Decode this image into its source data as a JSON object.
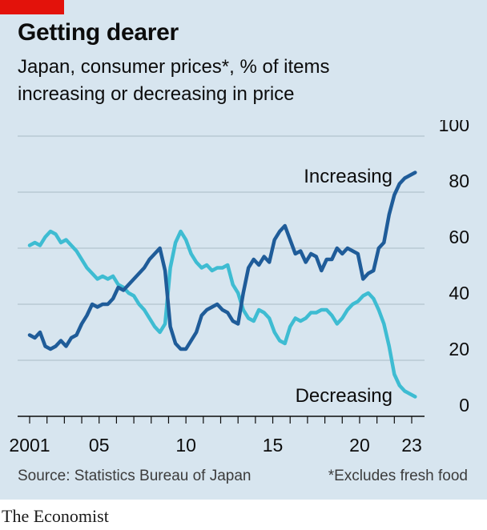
{
  "header": {
    "title": "Getting dearer",
    "subtitle_line1": "Japan, consumer prices*, % of items",
    "subtitle_line2": "increasing or decreasing in price"
  },
  "footer": {
    "source": "Source: Statistics Bureau of Japan",
    "note": "*Excludes fresh food",
    "brand": "The Economist"
  },
  "colors": {
    "increasing": "#1f5c99",
    "decreasing": "#3ebcd2",
    "background": "#d7e5ef",
    "accent": "#e3120b"
  },
  "chart_data": {
    "type": "line",
    "title": "Getting dearer",
    "ylim": [
      0,
      100
    ],
    "xlim": [
      2001,
      2023.2
    ],
    "y_ticks": [
      "0",
      "20",
      "40",
      "60",
      "80",
      "100"
    ],
    "x_ticks": [
      {
        "value": 2001,
        "label": "2001"
      },
      {
        "value": 2005,
        "label": "05"
      },
      {
        "value": 2010,
        "label": "10"
      },
      {
        "value": 2015,
        "label": "15"
      },
      {
        "value": 2020,
        "label": "20"
      },
      {
        "value": 2023,
        "label": "23"
      }
    ],
    "grid": true,
    "series": [
      {
        "name": "Increasing",
        "x": [
          2001.0,
          2001.3,
          2001.6,
          2001.9,
          2002.2,
          2002.5,
          2002.8,
          2003.1,
          2003.4,
          2003.7,
          2004.0,
          2004.3,
          2004.6,
          2004.9,
          2005.2,
          2005.5,
          2005.8,
          2006.1,
          2006.4,
          2006.7,
          2007.0,
          2007.3,
          2007.6,
          2007.9,
          2008.2,
          2008.5,
          2008.8,
          2009.1,
          2009.4,
          2009.7,
          2010.0,
          2010.3,
          2010.6,
          2010.9,
          2011.2,
          2011.5,
          2011.8,
          2012.1,
          2012.4,
          2012.7,
          2013.0,
          2013.3,
          2013.6,
          2013.9,
          2014.2,
          2014.5,
          2014.8,
          2015.1,
          2015.4,
          2015.7,
          2016.0,
          2016.3,
          2016.6,
          2016.9,
          2017.2,
          2017.5,
          2017.8,
          2018.1,
          2018.4,
          2018.7,
          2019.0,
          2019.3,
          2019.6,
          2019.9,
          2020.2,
          2020.5,
          2020.8,
          2021.1,
          2021.4,
          2021.7,
          2022.0,
          2022.3,
          2022.6,
          2022.9,
          2023.2
        ],
        "values": [
          29,
          28,
          30,
          25,
          24,
          25,
          27,
          25,
          28,
          29,
          33,
          36,
          40,
          39,
          40,
          40,
          42,
          46,
          45,
          47,
          49,
          51,
          53,
          56,
          58,
          60,
          52,
          32,
          26,
          24,
          24,
          27,
          30,
          36,
          38,
          39,
          40,
          38,
          37,
          34,
          33,
          44,
          53,
          56,
          54,
          57,
          55,
          63,
          66,
          68,
          63,
          58,
          59,
          55,
          58,
          57,
          52,
          56,
          56,
          60,
          58,
          60,
          59,
          58,
          49,
          51,
          52,
          60,
          62,
          72,
          79,
          83,
          85,
          86,
          87
        ]
      },
      {
        "name": "Decreasing",
        "x": [
          2001.0,
          2001.3,
          2001.6,
          2001.9,
          2002.2,
          2002.5,
          2002.8,
          2003.1,
          2003.4,
          2003.7,
          2004.0,
          2004.3,
          2004.6,
          2004.9,
          2005.2,
          2005.5,
          2005.8,
          2006.1,
          2006.4,
          2006.7,
          2007.0,
          2007.3,
          2007.6,
          2007.9,
          2008.2,
          2008.5,
          2008.8,
          2009.1,
          2009.4,
          2009.7,
          2010.0,
          2010.3,
          2010.6,
          2010.9,
          2011.2,
          2011.5,
          2011.8,
          2012.1,
          2012.4,
          2012.7,
          2013.0,
          2013.3,
          2013.6,
          2013.9,
          2014.2,
          2014.5,
          2014.8,
          2015.1,
          2015.4,
          2015.7,
          2016.0,
          2016.3,
          2016.6,
          2016.9,
          2017.2,
          2017.5,
          2017.8,
          2018.1,
          2018.4,
          2018.7,
          2019.0,
          2019.3,
          2019.6,
          2019.9,
          2020.2,
          2020.5,
          2020.8,
          2021.1,
          2021.4,
          2021.7,
          2022.0,
          2022.3,
          2022.6,
          2022.9,
          2023.2
        ],
        "values": [
          61,
          62,
          61,
          64,
          66,
          65,
          62,
          63,
          61,
          59,
          56,
          53,
          51,
          49,
          50,
          49,
          50,
          47,
          46,
          44,
          43,
          40,
          38,
          35,
          32,
          30,
          33,
          53,
          62,
          66,
          63,
          58,
          55,
          53,
          54,
          52,
          53,
          53,
          54,
          47,
          44,
          38,
          35,
          34,
          38,
          37,
          35,
          30,
          27,
          26,
          32,
          35,
          34,
          35,
          37,
          37,
          38,
          38,
          36,
          33,
          35,
          38,
          40,
          41,
          43,
          44,
          42,
          38,
          33,
          25,
          15,
          11,
          9,
          8,
          7
        ]
      }
    ]
  }
}
